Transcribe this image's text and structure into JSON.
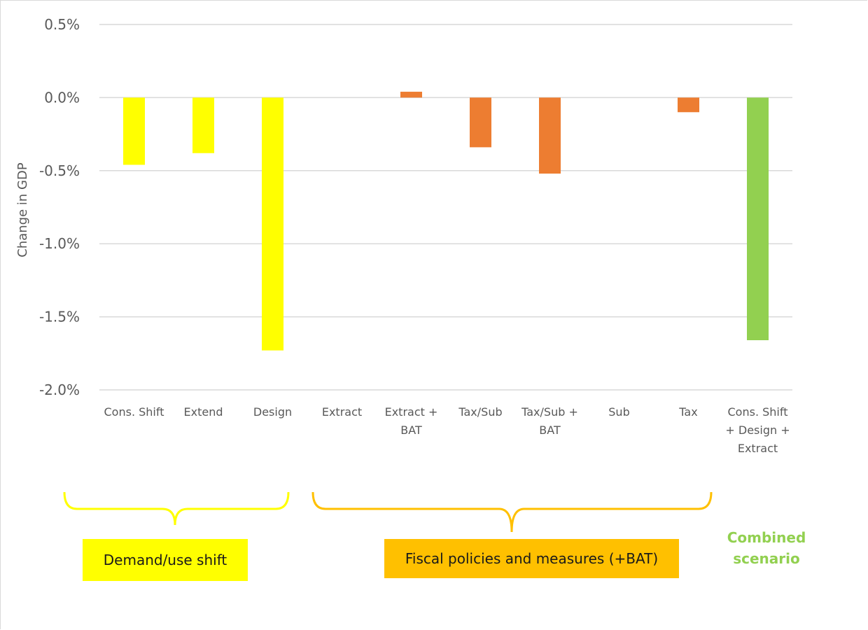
{
  "chart_data": {
    "type": "bar",
    "title": "",
    "xlabel": "",
    "ylabel": "Change in GDP",
    "ylim": [
      -2.0,
      0.5
    ],
    "y_ticks": [
      "0.5%",
      "0.0%",
      "-0.5%",
      "-1.0%",
      "-1.5%",
      "-2.0%"
    ],
    "y_tick_values": [
      0.5,
      0.0,
      -0.5,
      -1.0,
      -1.5,
      -2.0
    ],
    "grid": true,
    "categories": [
      "Cons. Shift",
      "Extend",
      "Design",
      "Extract",
      "Extract +\nBAT",
      "Tax/Sub",
      "Tax/Sub +\nBAT",
      "Sub",
      "Tax",
      "Cons. Shift\n+ Design +\nExtract"
    ],
    "values": [
      -0.46,
      -0.38,
      -1.73,
      0.0,
      0.04,
      -0.34,
      -0.52,
      0.0,
      -0.1,
      -1.66
    ],
    "bar_colors": [
      "#ffff00",
      "#ffff00",
      "#ffff00",
      "#ed7d31",
      "#ed7d31",
      "#ed7d31",
      "#ed7d31",
      "#ed7d31",
      "#ed7d31",
      "#92d050"
    ]
  },
  "groups": {
    "demand": {
      "label": "Demand/use shift",
      "color": "#ffff00"
    },
    "fiscal": {
      "label": "Fiscal policies and measures (+BAT)",
      "color": "#ffc000"
    },
    "combined": {
      "label": "Combined\nscenario",
      "color": "#92d050"
    }
  }
}
